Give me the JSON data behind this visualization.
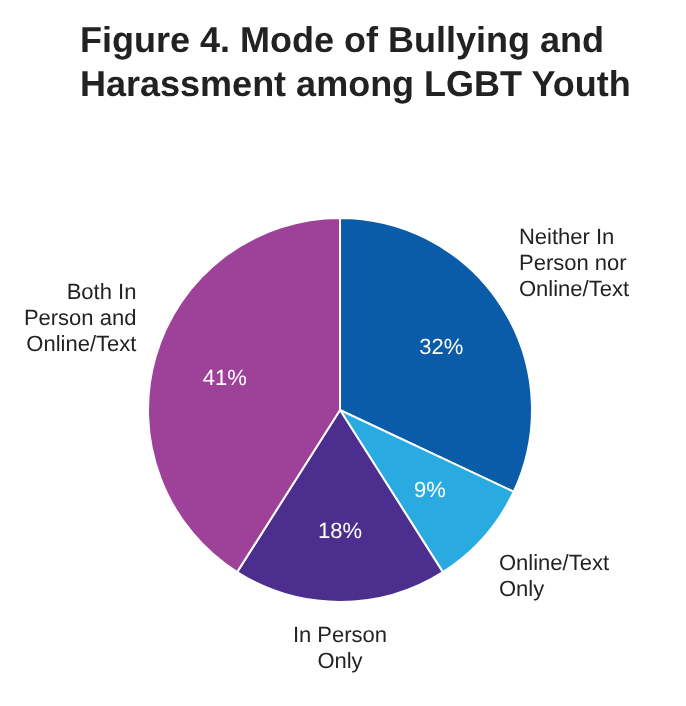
{
  "chart_data": {
    "type": "pie",
    "title": "Figure 4. Mode of Bullying and Harassment among LGBT Youth",
    "categories": [
      "Neither In Person nor Online/Text",
      "Online/Text Only",
      "In Person Only",
      "Both In Person and Online/Text"
    ],
    "values": [
      32,
      9,
      18,
      41
    ],
    "colors": [
      "#0b5ca8",
      "#29abe2",
      "#4b2e8e",
      "#9e4199"
    ],
    "value_labels": [
      "32%",
      "9%",
      "18%",
      "41%"
    ],
    "legend": false
  }
}
